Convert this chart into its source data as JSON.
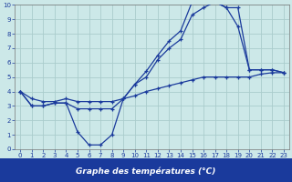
{
  "title": "Graphe des températures (°C)",
  "bg_color": "#cce8e8",
  "grid_color": "#aacccc",
  "line_color": "#1a3a9c",
  "xlim": [
    -0.5,
    23.5
  ],
  "ylim": [
    0,
    10
  ],
  "xticks": [
    0,
    1,
    2,
    3,
    4,
    5,
    6,
    7,
    8,
    9,
    10,
    11,
    12,
    13,
    14,
    15,
    16,
    17,
    18,
    19,
    20,
    21,
    22,
    23
  ],
  "yticks": [
    0,
    1,
    2,
    3,
    4,
    5,
    6,
    7,
    8,
    9,
    10
  ],
  "line1_x": [
    0,
    1,
    2,
    3,
    4,
    5,
    6,
    7,
    8,
    9,
    10,
    11,
    12,
    13,
    14,
    15,
    16,
    17,
    18,
    19,
    20,
    21,
    22,
    23
  ],
  "line1_y": [
    4.0,
    3.0,
    3.0,
    3.2,
    3.2,
    1.2,
    0.3,
    0.3,
    1.0,
    3.5,
    4.5,
    5.4,
    6.5,
    7.5,
    8.2,
    10.2,
    10.2,
    10.2,
    9.8,
    9.8,
    5.5,
    5.5,
    5.5,
    5.3
  ],
  "line2_x": [
    0,
    1,
    2,
    3,
    4,
    5,
    6,
    7,
    8,
    9,
    10,
    11,
    12,
    13,
    14,
    15,
    16,
    17,
    18,
    19,
    20,
    21,
    22,
    23
  ],
  "line2_y": [
    4.0,
    3.0,
    3.0,
    3.2,
    3.2,
    2.8,
    2.8,
    2.8,
    2.8,
    3.5,
    4.5,
    5.0,
    6.2,
    7.0,
    7.6,
    9.3,
    9.8,
    10.2,
    9.8,
    8.5,
    5.5,
    5.5,
    5.5,
    5.3
  ],
  "line3_x": [
    0,
    1,
    2,
    3,
    4,
    5,
    6,
    7,
    8,
    9,
    10,
    11,
    12,
    13,
    14,
    15,
    16,
    17,
    18,
    19,
    20,
    21,
    22,
    23
  ],
  "line3_y": [
    4.0,
    3.5,
    3.3,
    3.3,
    3.5,
    3.3,
    3.3,
    3.3,
    3.3,
    3.5,
    3.7,
    4.0,
    4.2,
    4.4,
    4.6,
    4.8,
    5.0,
    5.0,
    5.0,
    5.0,
    5.0,
    5.2,
    5.3,
    5.3
  ]
}
